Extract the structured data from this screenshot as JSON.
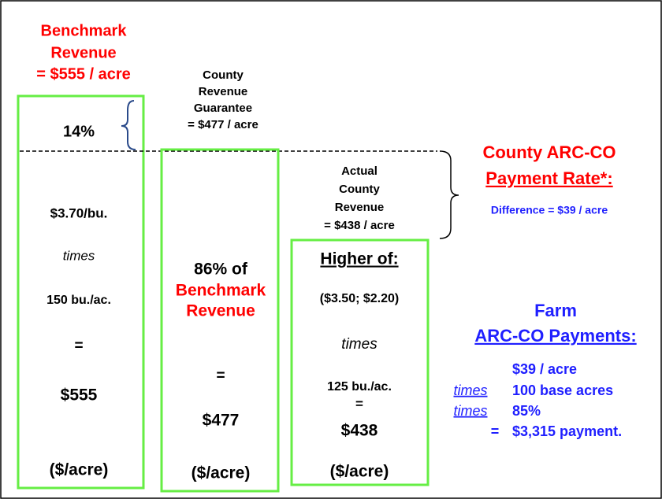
{
  "benchmark_label": [
    "Benchmark",
    "Revenue",
    "= $555 / acre"
  ],
  "gap_percent": "14%",
  "guarantee_label": [
    "County",
    "Revenue",
    "Guarantee",
    "= $477 / acre"
  ],
  "actual_label": [
    "Actual",
    "County",
    "Revenue",
    "= $438 / acre"
  ],
  "box1": [
    "$3.70/bu.",
    "times",
    "150 bu./ac.",
    "=",
    "$555",
    "($/acre)"
  ],
  "box2": [
    "86% of",
    "Benchmark",
    "Revenue",
    "=",
    "$477",
    "($/acre)"
  ],
  "box3": [
    "Higher of:",
    "($3.50; $2.20)",
    "times",
    "125 bu./ac.",
    "=",
    "$438",
    "($/acre)"
  ],
  "payment_rate": {
    "title": [
      "County ARC-CO",
      "Payment Rate*:"
    ],
    "difference": "Difference = $39 / acre"
  },
  "farm_payments": {
    "title": [
      "Farm",
      "ARC-CO Payments:"
    ],
    "rows": [
      [
        "",
        "$39 / acre"
      ],
      [
        "times",
        "100 base acres"
      ],
      [
        "times",
        "85%"
      ],
      [
        "=",
        "$3,315 payment."
      ]
    ]
  }
}
